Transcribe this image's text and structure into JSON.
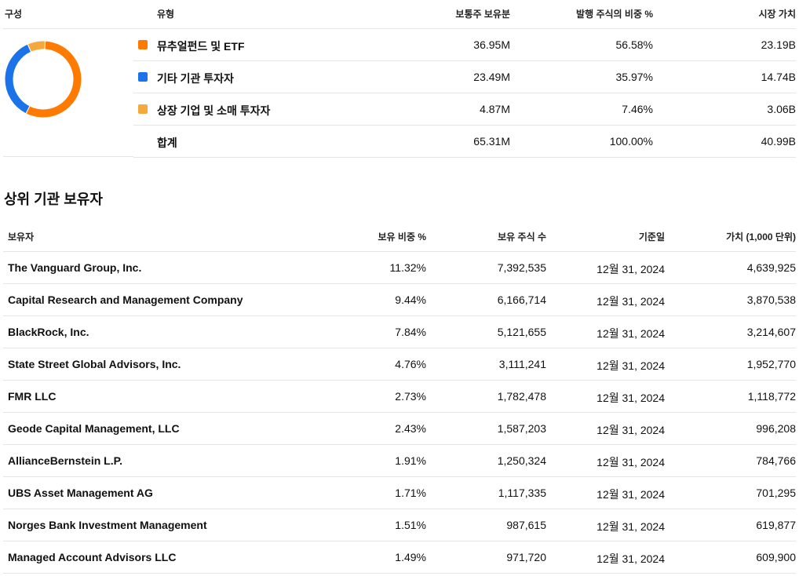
{
  "composition": {
    "headers": {
      "composition": "구성",
      "type": "유형",
      "common_shares": "보통주 보유분",
      "pct_outstanding": "발행 주식의 비중 %",
      "market_value": "시장 가치"
    },
    "rows": [
      {
        "label": "뮤추얼펀드 및 ETF",
        "shares": "36.95M",
        "pct": "56.58%",
        "value": "23.19B",
        "color": "#ff7a00",
        "fraction": 0.5658
      },
      {
        "label": "기타 기관 투자자",
        "shares": "23.49M",
        "pct": "35.97%",
        "value": "14.74B",
        "color": "#1a73e8",
        "fraction": 0.3597
      },
      {
        "label": "상장 기업 및 소매 투자자",
        "shares": "4.87M",
        "pct": "7.46%",
        "value": "3.06B",
        "color": "#f5a93b",
        "fraction": 0.0746
      }
    ],
    "total": {
      "label": "합계",
      "shares": "65.31M",
      "pct": "100.00%",
      "value": "40.99B"
    }
  },
  "holders": {
    "title": "상위 기관 보유자",
    "headers": {
      "holder": "보유자",
      "pct": "보유 비중 %",
      "shares": "보유 주식 수",
      "date": "기준일",
      "value": "가치 (1,000 단위)"
    },
    "rows": [
      {
        "name": "The Vanguard Group, Inc.",
        "pct": "11.32%",
        "shares": "7,392,535",
        "date": "12월 31, 2024",
        "value": "4,639,925"
      },
      {
        "name": "Capital Research and Management Company",
        "pct": "9.44%",
        "shares": "6,166,714",
        "date": "12월 31, 2024",
        "value": "3,870,538"
      },
      {
        "name": "BlackRock, Inc.",
        "pct": "7.84%",
        "shares": "5,121,655",
        "date": "12월 31, 2024",
        "value": "3,214,607"
      },
      {
        "name": "State Street Global Advisors, Inc.",
        "pct": "4.76%",
        "shares": "3,111,241",
        "date": "12월 31, 2024",
        "value": "1,952,770"
      },
      {
        "name": "FMR LLC",
        "pct": "2.73%",
        "shares": "1,782,478",
        "date": "12월 31, 2024",
        "value": "1,118,772"
      },
      {
        "name": "Geode Capital Management, LLC",
        "pct": "2.43%",
        "shares": "1,587,203",
        "date": "12월 31, 2024",
        "value": "996,208"
      },
      {
        "name": "AllianceBernstein L.P.",
        "pct": "1.91%",
        "shares": "1,250,324",
        "date": "12월 31, 2024",
        "value": "784,766"
      },
      {
        "name": "UBS Asset Management AG",
        "pct": "1.71%",
        "shares": "1,117,335",
        "date": "12월 31, 2024",
        "value": "701,295"
      },
      {
        "name": "Norges Bank Investment Management",
        "pct": "1.51%",
        "shares": "987,615",
        "date": "12월 31, 2024",
        "value": "619,877"
      },
      {
        "name": "Managed Account Advisors LLC",
        "pct": "1.49%",
        "shares": "971,720",
        "date": "12월 31, 2024",
        "value": "609,900"
      }
    ]
  }
}
